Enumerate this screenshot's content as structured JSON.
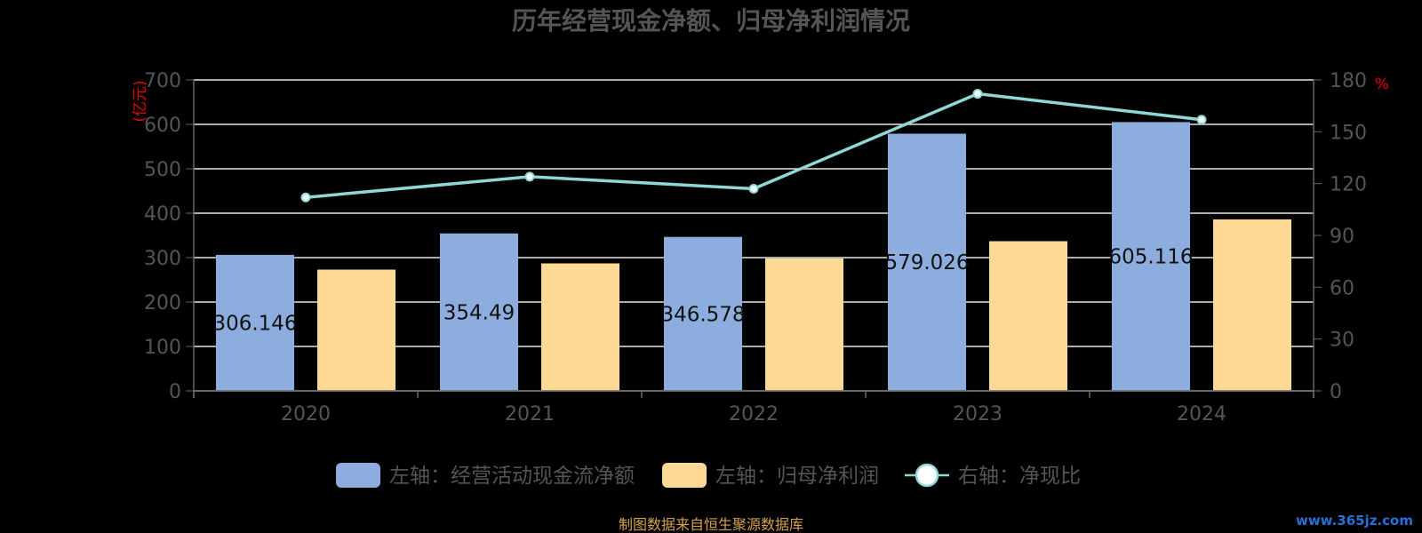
{
  "chart_data": {
    "type": "bar",
    "title": "历年经营现金净额、归母净利润情况",
    "categories": [
      "2020",
      "2021",
      "2022",
      "2023",
      "2024"
    ],
    "left_axis": {
      "unit": "(亿元)",
      "ticks": [
        0,
        100,
        200,
        300,
        400,
        500,
        600,
        700
      ],
      "ylim": [
        0,
        700
      ]
    },
    "right_axis": {
      "unit": "%",
      "ticks": [
        0,
        30,
        60,
        90,
        120,
        150,
        180
      ],
      "ylim": [
        0,
        180
      ]
    },
    "series": [
      {
        "name": "左轴：经营活动现金流净额",
        "type": "bar",
        "axis": "left",
        "color": "#8dadde",
        "values": [
          306.146,
          354.49,
          346.578,
          579.026,
          605.116
        ],
        "labels": [
          "306.146",
          "354.49",
          "346.578",
          "579.026",
          "605.116"
        ]
      },
      {
        "name": "左轴：归母净利润",
        "type": "bar",
        "axis": "left",
        "color": "#fed996",
        "values": [
          273,
          287,
          298,
          337,
          386
        ]
      },
      {
        "name": "右轴：净现比",
        "type": "line",
        "axis": "right",
        "color": "#8fd8d8",
        "values": [
          112,
          124,
          117,
          172,
          157
        ]
      }
    ],
    "legend_position": "bottom",
    "grid": true
  },
  "footer": {
    "source": "制图数据来自恒生聚源数据库",
    "watermark": "www.365jz.com"
  }
}
